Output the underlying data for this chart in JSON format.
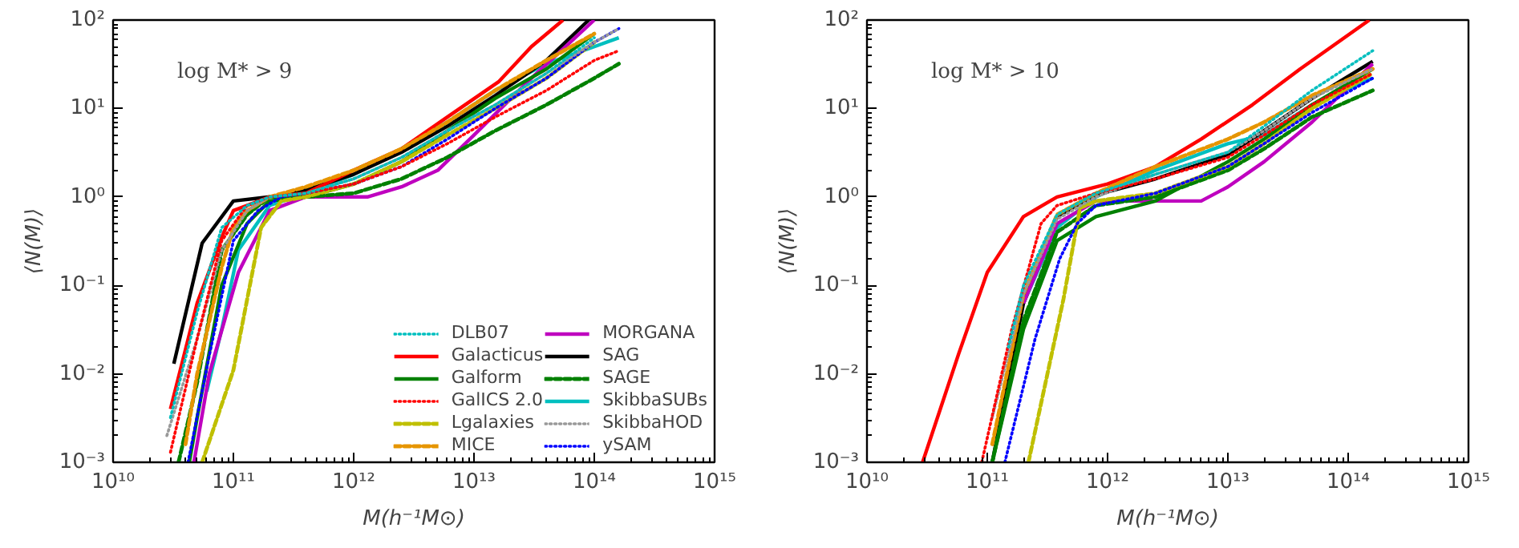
{
  "chart_data": [
    {
      "type": "line",
      "xlabel": "M(h⁻¹M⊙)",
      "ylabel": "⟨N(M)⟩",
      "annotations": [
        "log M* > 9"
      ],
      "log": "xy",
      "xlim": [
        10000000000.0,
        1000000000000000.0
      ],
      "ylim": [
        0.001,
        100
      ],
      "xticks": [
        {
          "value": 10000000000.0,
          "label": "10¹⁰"
        },
        {
          "value": 100000000000.0,
          "label": "10¹¹"
        },
        {
          "value": 1000000000000.0,
          "label": "10¹²"
        },
        {
          "value": 10000000000000.0,
          "label": "10¹³"
        },
        {
          "value": 100000000000000.0,
          "label": "10¹⁴"
        },
        {
          "value": 1000000000000000.0,
          "label": "10¹⁵"
        }
      ],
      "yticks": [
        {
          "value": 0.001,
          "label": "10⁻³"
        },
        {
          "value": 0.01,
          "label": "10⁻²"
        },
        {
          "value": 0.1,
          "label": "10⁻¹"
        },
        {
          "value": 1,
          "label": "10⁰"
        },
        {
          "value": 10,
          "label": "10¹"
        },
        {
          "value": 100,
          "label": "10²"
        }
      ],
      "grid": false,
      "legend": "bottom right",
      "series": [
        {
          "name": "DLB07",
          "color": "#00bfbf",
          "line_style": "dotted",
          "x": [
            30000000000.0,
            50000000000.0,
            80000000000.0,
            130000000000.0,
            200000000000.0,
            400000000000.0,
            1000000000000.0,
            2500000000000.0,
            6000000000000.0,
            15000000000000.0,
            40000000000000.0,
            100000000000000.0
          ],
          "values": [
            0.0032,
            0.05,
            0.45,
            0.8,
            1,
            1.1,
            1.6,
            2.8,
            5.6,
            11,
            25,
            63
          ]
        },
        {
          "name": "Galacticus",
          "color": "#ff0000",
          "line_style": "solid",
          "x": [
            30000000000.0,
            50000000000.0,
            80000000000.0,
            100000000000.0,
            200000000000.0,
            400000000000.0,
            1000000000000.0,
            2500000000000.0,
            6000000000000.0,
            16000000000000.0,
            30000000000000.0,
            55000000000000.0
          ],
          "values": [
            0.004,
            0.063,
            0.35,
            0.7,
            1,
            1.1,
            2,
            3.5,
            8,
            20,
            50,
            100
          ]
        },
        {
          "name": "Galform",
          "color": "#008000",
          "line_style": "solid",
          "x": [
            43000000000.0,
            50000000000.0,
            80000000000.0,
            130000000000.0,
            200000000000.0,
            400000000000.0,
            1000000000000.0,
            2500000000000.0,
            6000000000000.0,
            15000000000000.0,
            40000000000000.0,
            100000000000000.0
          ],
          "values": [
            0.001,
            0.0032,
            0.1,
            0.5,
            0.9,
            1,
            1.4,
            2.5,
            5.6,
            13,
            28,
            70
          ]
        },
        {
          "name": "GalICS 2.0",
          "color": "#ff0000",
          "line_style": "dotted",
          "x": [
            30000000000.0,
            50000000000.0,
            80000000000.0,
            130000000000.0,
            200000000000.0,
            400000000000.0,
            1000000000000.0,
            2500000000000.0,
            6000000000000.0,
            15000000000000.0,
            40000000000000.0,
            100000000000000.0,
            160000000000000.0
          ],
          "values": [
            0.0013,
            0.025,
            0.32,
            0.8,
            1,
            1.1,
            1.4,
            2.2,
            4,
            8,
            16,
            35,
            45
          ]
        },
        {
          "name": "Lgalaxies",
          "color": "#bfbf00",
          "line_style": "dashed",
          "x": [
            55000000000.0,
            100000000000.0,
            170000000000.0,
            250000000000.0,
            400000000000.0,
            1000000000000.0,
            2500000000000.0,
            6000000000000.0,
            15000000000000.0,
            40000000000000.0,
            100000000000000.0
          ],
          "values": [
            0.001,
            0.011,
            0.45,
            0.9,
            1,
            1.4,
            2.5,
            5,
            10,
            22,
            56
          ]
        },
        {
          "name": "MICE",
          "color": "#e69500",
          "line_style": "dashed",
          "x": [
            40000000000.0,
            50000000000.0,
            80000000000.0,
            100000000000.0,
            130000000000.0,
            200000000000.0,
            400000000000.0,
            1000000000000.0,
            2500000000000.0,
            6000000000000.0,
            15000000000000.0,
            40000000000000.0,
            100000000000000.0
          ],
          "values": [
            0.0016,
            0.01,
            0.16,
            0.45,
            0.7,
            1,
            1.3,
            2,
            3.5,
            7,
            16,
            35,
            70
          ]
        },
        {
          "name": "MORGANA",
          "color": "#bf00bf",
          "line_style": "solid",
          "x": [
            47000000000.0,
            63000000000.0,
            110000000000.0,
            200000000000.0,
            400000000000.0,
            1300000000000.0,
            2500000000000.0,
            5000000000000.0,
            10000000000000.0,
            30000000000000.0,
            100000000000000.0
          ],
          "values": [
            0.001,
            0.01,
            0.14,
            0.7,
            1,
            1,
            1.3,
            2,
            5,
            22,
            100
          ]
        },
        {
          "name": "SAG",
          "color": "#000000",
          "line_style": "solid",
          "x": [
            32000000000.0,
            55000000000.0,
            100000000000.0,
            200000000000.0,
            400000000000.0,
            1000000000000.0,
            2500000000000.0,
            6000000000000.0,
            15000000000000.0,
            40000000000000.0,
            90000000000000.0
          ],
          "values": [
            0.013,
            0.3,
            0.9,
            1,
            1.2,
            1.8,
            3.2,
            6.3,
            14,
            35,
            100
          ]
        },
        {
          "name": "SAGE",
          "color": "#008000",
          "line_style": "dashed",
          "x": [
            35000000000.0,
            50000000000.0,
            80000000000.0,
            130000000000.0,
            200000000000.0,
            400000000000.0,
            1000000000000.0,
            2500000000000.0,
            6000000000000.0,
            15000000000000.0,
            40000000000000.0,
            100000000000000.0,
            160000000000000.0
          ],
          "values": [
            0.001,
            0.008,
            0.25,
            0.63,
            1,
            1,
            1.1,
            1.6,
            2.8,
            5.6,
            11,
            22,
            32
          ]
        },
        {
          "name": "SkibbaSUBs",
          "color": "#00bfbf",
          "line_style": "solid",
          "x": [
            60000000000.0,
            80000000000.0,
            110000000000.0,
            200000000000.0,
            400000000000.0,
            1000000000000.0,
            2500000000000.0,
            6000000000000.0,
            15000000000000.0,
            40000000000000.0,
            100000000000000.0,
            160000000000000.0
          ],
          "values": [
            0.0063,
            0.032,
            0.25,
            0.8,
            1.1,
            1.8,
            3.5,
            7,
            16,
            32,
            50,
            63
          ]
        },
        {
          "name": "SkibbaHOD",
          "color": "#999999",
          "line_style": "dotted",
          "x": [
            28000000000.0,
            50000000000.0,
            80000000000.0,
            130000000000.0,
            200000000000.0,
            400000000000.0,
            1000000000000.0,
            2500000000000.0,
            6000000000000.0,
            15000000000000.0,
            40000000000000.0,
            100000000000000.0,
            160000000000000.0
          ],
          "values": [
            0.002,
            0.025,
            0.25,
            0.7,
            1,
            1.1,
            1.6,
            2.8,
            5.6,
            11,
            25,
            56,
            80
          ]
        },
        {
          "name": "ySAM",
          "color": "#0000ff",
          "line_style": "dotted",
          "x": [
            42000000000.0,
            63000000000.0,
            100000000000.0,
            160000000000.0,
            250000000000.0,
            400000000000.0,
            1000000000000.0,
            2500000000000.0,
            6000000000000.0,
            15000000000000.0,
            40000000000000.0,
            100000000000000.0,
            160000000000000.0
          ],
          "values": [
            0.001,
            0.016,
            0.32,
            0.7,
            1,
            1.1,
            1.4,
            2.2,
            4.5,
            10,
            22,
            56,
            80
          ]
        }
      ]
    },
    {
      "type": "line",
      "xlabel": "M(h⁻¹M⊙)",
      "ylabel": "⟨N(M)⟩",
      "annotations": [
        "log M* > 10"
      ],
      "log": "xy",
      "xlim": [
        10000000000.0,
        1000000000000000.0
      ],
      "ylim": [
        0.001,
        100
      ],
      "xticks": [
        {
          "value": 10000000000.0,
          "label": "10¹⁰"
        },
        {
          "value": 100000000000.0,
          "label": "10¹¹"
        },
        {
          "value": 1000000000000.0,
          "label": "10¹²"
        },
        {
          "value": 10000000000000.0,
          "label": "10¹³"
        },
        {
          "value": 100000000000000.0,
          "label": "10¹⁴"
        },
        {
          "value": 1000000000000000.0,
          "label": "10¹⁵"
        }
      ],
      "yticks": [
        {
          "value": 0.001,
          "label": "10⁻³"
        },
        {
          "value": 0.01,
          "label": "10⁻²"
        },
        {
          "value": 0.1,
          "label": "10⁻¹"
        },
        {
          "value": 1,
          "label": "10⁰"
        },
        {
          "value": 10,
          "label": "10¹"
        },
        {
          "value": 100,
          "label": "10²"
        }
      ],
      "grid": false,
      "series": [
        {
          "color": "#00bfbf",
          "line_style": "dotted",
          "x": [
            150000000000.0,
            200000000000.0,
            380000000000.0,
            800000000000.0,
            2500000000000.0,
            10000000000000.0,
            20000000000000.0,
            50000000000000.0,
            160000000000000.0
          ],
          "values": [
            0.02,
            0.1,
            0.63,
            1.1,
            1.8,
            3.2,
            6.3,
            16,
            45
          ]
        },
        {
          "color": "#ff0000",
          "line_style": "solid",
          "x": [
            29000000000.0,
            58000000000.0,
            100000000000.0,
            200000000000.0,
            380000000000.0,
            1000000000000.0,
            2500000000000.0,
            6000000000000.0,
            16000000000000.0,
            40000000000000.0,
            150000000000000.0
          ],
          "values": [
            0.001,
            0.017,
            0.14,
            0.6,
            1,
            1.4,
            2.2,
            4.5,
            11,
            28,
            100
          ]
        },
        {
          "color": "#008000",
          "line_style": "solid",
          "x": [
            110000000000.0,
            200000000000.0,
            380000000000.0,
            800000000000.0,
            2500000000000.0,
            10000000000000.0,
            20000000000000.0,
            50000000000000.0,
            160000000000000.0
          ],
          "values": [
            0.001,
            0.032,
            0.32,
            0.6,
            0.9,
            2.5,
            4.5,
            11,
            28
          ]
        },
        {
          "color": "#ff0000",
          "line_style": "dotted",
          "x": [
            90000000000.0,
            160000000000.0,
            280000000000.0,
            380000000000.0,
            800000000000.0,
            2500000000000.0,
            10000000000000.0,
            20000000000000.0,
            50000000000000.0,
            160000000000000.0
          ],
          "values": [
            0.001,
            0.032,
            0.5,
            0.8,
            1.1,
            1.6,
            2.8,
            5,
            11,
            25
          ]
        },
        {
          "color": "#bfbf00",
          "line_style": "dashed",
          "x": [
            220000000000.0,
            430000000000.0,
            590000000000.0,
            800000000000.0,
            2500000000000.0,
            10000000000000.0,
            20000000000000.0,
            50000000000000.0,
            160000000000000.0
          ],
          "values": [
            0.001,
            0.07,
            0.75,
            0.9,
            1.1,
            2.2,
            4,
            10,
            25
          ]
        },
        {
          "color": "#e69500",
          "line_style": "dashed",
          "x": [
            110000000000.0,
            200000000000.0,
            380000000000.0,
            800000000000.0,
            2500000000000.0,
            10000000000000.0,
            20000000000000.0,
            50000000000000.0,
            160000000000000.0
          ],
          "values": [
            0.0016,
            0.08,
            0.63,
            1.1,
            2.2,
            4.5,
            7,
            14,
            28
          ]
        },
        {
          "color": "#bf00bf",
          "line_style": "solid",
          "x": [
            200000000000.0,
            380000000000.0,
            800000000000.0,
            2500000000000.0,
            6000000000000.0,
            10000000000000.0,
            20000000000000.0,
            50000000000000.0,
            160000000000000.0
          ],
          "values": [
            0.063,
            0.5,
            0.9,
            0.9,
            0.9,
            1.3,
            2.5,
            7,
            32
          ]
        },
        {
          "color": "#000000",
          "line_style": "solid",
          "x": [
            110000000000.0,
            200000000000.0,
            380000000000.0,
            800000000000.0,
            2500000000000.0,
            10000000000000.0,
            20000000000000.0,
            50000000000000.0,
            160000000000000.0
          ],
          "values": [
            0.001,
            0.063,
            0.6,
            1.05,
            1.6,
            3,
            5.6,
            13,
            34
          ]
        },
        {
          "color": "#008000",
          "line_style": "dashed",
          "x": [
            110000000000.0,
            200000000000.0,
            380000000000.0,
            800000000000.0,
            2500000000000.0,
            10000000000000.0,
            20000000000000.0,
            50000000000000.0,
            160000000000000.0
          ],
          "values": [
            0.001,
            0.04,
            0.4,
            0.8,
            1,
            2,
            3.5,
            8,
            16
          ]
        },
        {
          "color": "#00bfbf",
          "line_style": "solid",
          "x": [
            200000000000.0,
            380000000000.0,
            800000000000.0,
            2500000000000.0,
            10000000000000.0,
            20000000000000.0,
            50000000000000.0,
            160000000000000.0
          ],
          "values": [
            0.063,
            0.45,
            1,
            2,
            4,
            5,
            11,
            22
          ]
        },
        {
          "color": "#999999",
          "line_style": "dotted",
          "x": [
            110000000000.0,
            200000000000.0,
            380000000000.0,
            800000000000.0,
            2500000000000.0,
            10000000000000.0,
            20000000000000.0,
            50000000000000.0,
            160000000000000.0
          ],
          "values": [
            0.0032,
            0.08,
            0.56,
            1,
            1.8,
            3.2,
            5.6,
            13,
            28
          ]
        },
        {
          "color": "#0000ff",
          "line_style": "dotted",
          "x": [
            140000000000.0,
            250000000000.0,
            400000000000.0,
            560000000000.0,
            800000000000.0,
            2500000000000.0,
            10000000000000.0,
            20000000000000.0,
            50000000000000.0,
            160000000000000.0
          ],
          "values": [
            0.001,
            0.025,
            0.2,
            0.5,
            0.8,
            1.1,
            2.2,
            4,
            9,
            22
          ]
        }
      ]
    }
  ]
}
